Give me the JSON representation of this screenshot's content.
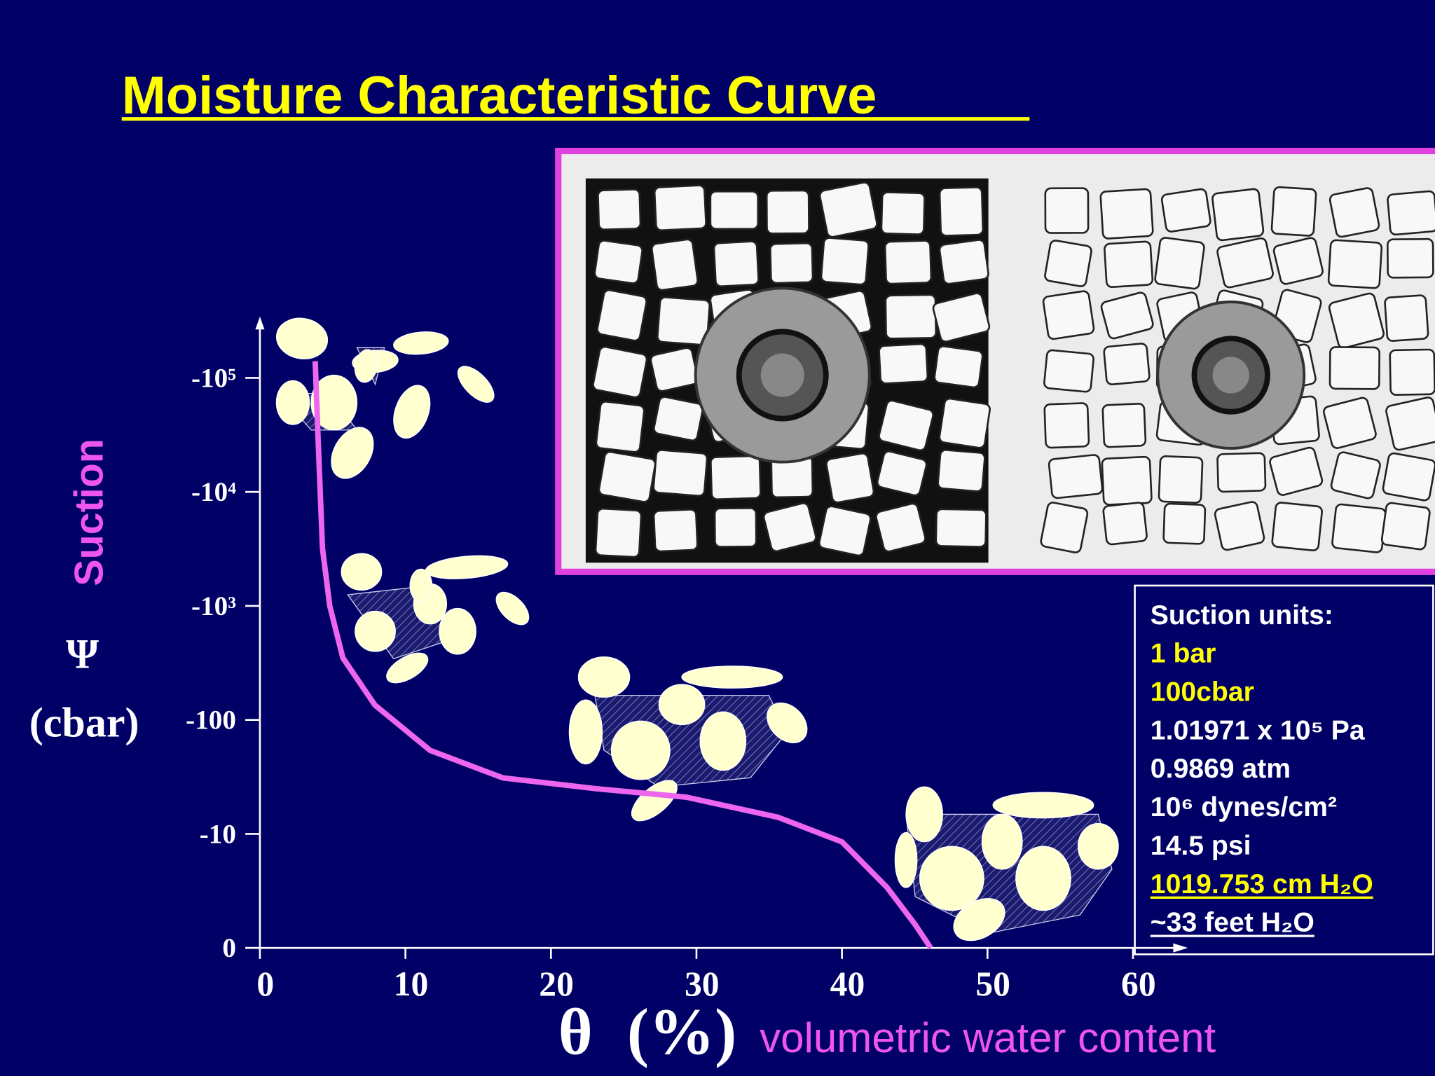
{
  "title": "Moisture Characteristic Curve",
  "chart_data": {
    "type": "line",
    "y_label": "Suction",
    "y_symbol": "Ψ",
    "y_unit": "(cbar)",
    "x_symbol": "θ",
    "x_unit": "(%)",
    "x_label": "volumetric water content",
    "x": [
      3.8,
      4.0,
      4.3,
      4.8,
      5.7,
      7.9,
      11.7,
      16.7,
      23.0,
      29.3,
      35.6,
      40.0,
      43.1,
      45.0,
      46.1
    ],
    "values": [
      -140000,
      -29000,
      -3200,
      -1000,
      -350,
      -135,
      -54,
      -31,
      -25,
      -21,
      -14,
      -9.3,
      -5.3,
      -2.1,
      0
    ],
    "color": "#ee66ee",
    "xlim": [
      0,
      60
    ],
    "xticks": [
      0,
      10,
      20,
      30,
      40,
      50,
      60
    ],
    "ylim": [
      0,
      -300000
    ],
    "yscale": "symlog",
    "yticks": [
      0,
      -10,
      -100,
      {
        "value": -1000,
        "label": "-10³"
      },
      {
        "value": -10000,
        "label": "-10⁴"
      },
      {
        "value": -100000,
        "label": "-10⁵"
      }
    ]
  },
  "units_box": {
    "heading": "Suction units:",
    "items": [
      {
        "text": "1 bar",
        "color": "#ffff00",
        "underline": false
      },
      {
        "text": "100cbar",
        "color": "#ffff00",
        "underline": false
      },
      {
        "text": "1.01971 x 10⁵ Pa",
        "color": "#ffffff",
        "underline": false
      },
      {
        "text": "0.9869 atm",
        "color": "#ffffff",
        "underline": false
      },
      {
        "text": "10⁶ dynes/cm²",
        "color": "#ffffff",
        "underline": false
      },
      {
        "text": "14.5 psi",
        "color": "#ffffff",
        "underline": false
      },
      {
        "text": "1019.753 cm H₂O",
        "color": "#ffff00",
        "underline": true
      },
      {
        "text": "~33 feet H₂O",
        "color": "#ffffff",
        "underline": true
      }
    ]
  }
}
